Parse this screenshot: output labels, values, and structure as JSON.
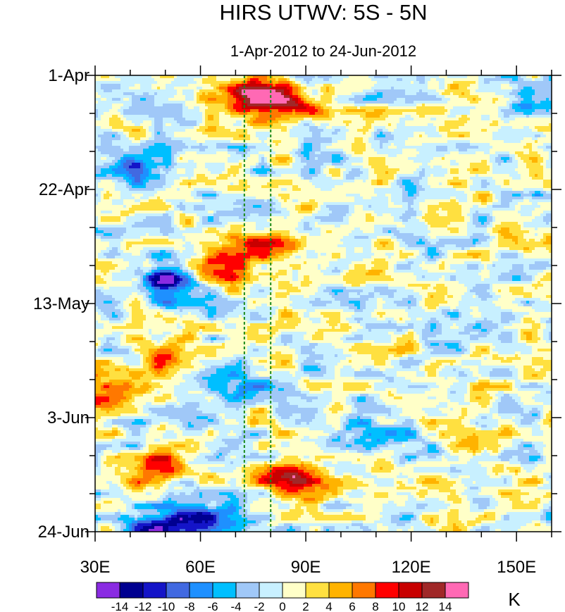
{
  "chart_data": {
    "type": "heatmap",
    "title": "HIRS UTWV: 5S - 5N",
    "subtitle": "1-Apr-2012 to 24-Jun-2012",
    "x_axis": {
      "range": [
        30,
        160
      ],
      "ticks": [
        {
          "value": 30,
          "label": "30E"
        },
        {
          "value": 60,
          "label": "60E"
        },
        {
          "value": 90,
          "label": "90E"
        },
        {
          "value": 120,
          "label": "120E"
        },
        {
          "value": 150,
          "label": "150E"
        }
      ]
    },
    "y_axis": {
      "range_days": [
        0,
        84
      ],
      "direction": "downward",
      "ticks": [
        {
          "day": 0,
          "label": "1-Apr"
        },
        {
          "day": 21,
          "label": "22-Apr"
        },
        {
          "day": 42,
          "label": "13-May"
        },
        {
          "day": 63,
          "label": "3-Jun"
        },
        {
          "day": 84,
          "label": "24-Jun"
        }
      ]
    },
    "reference_lines_lon": [
      72.5,
      80
    ],
    "colorbar": {
      "unit": "K",
      "labels": [
        "-14",
        "-12",
        "-10",
        "-8",
        "-6",
        "-4",
        "-2",
        "0",
        "2",
        "4",
        "6",
        "8",
        "10",
        "12",
        "14"
      ],
      "colors": [
        "#8a2be2",
        "#000090",
        "#1414c8",
        "#4169e1",
        "#1e90ff",
        "#00bfff",
        "#a0c8f8",
        "#c8f0ff",
        "#ffffc8",
        "#ffe040",
        "#ffb300",
        "#ff7800",
        "#ff0000",
        "#c80000",
        "#a02828",
        "#ff69b4"
      ]
    },
    "anomaly_features": [
      {
        "lon": 75,
        "day": 4,
        "value": 15,
        "note": "pink core near 1-Apr"
      },
      {
        "lon": 85,
        "day": 5,
        "value": 11
      },
      {
        "lon": 68,
        "day": 35,
        "value": 9
      },
      {
        "lon": 81,
        "day": 31,
        "value": 8
      },
      {
        "lon": 86,
        "day": 74,
        "value": 12
      },
      {
        "lon": 48,
        "day": 72,
        "value": 9
      },
      {
        "lon": 50,
        "day": 52,
        "value": 7
      },
      {
        "lon": 32,
        "day": 60,
        "value": 7
      },
      {
        "lon": 50,
        "day": 38,
        "value": -12
      },
      {
        "lon": 60,
        "day": 82,
        "value": -13
      },
      {
        "lon": 47,
        "day": 84,
        "value": -12
      },
      {
        "lon": 40,
        "day": 17,
        "value": -7
      },
      {
        "lon": 110,
        "day": 66,
        "value": -6
      },
      {
        "lon": 72,
        "day": 58,
        "value": -8
      },
      {
        "lon": 152,
        "day": 4,
        "value": -6
      }
    ]
  }
}
